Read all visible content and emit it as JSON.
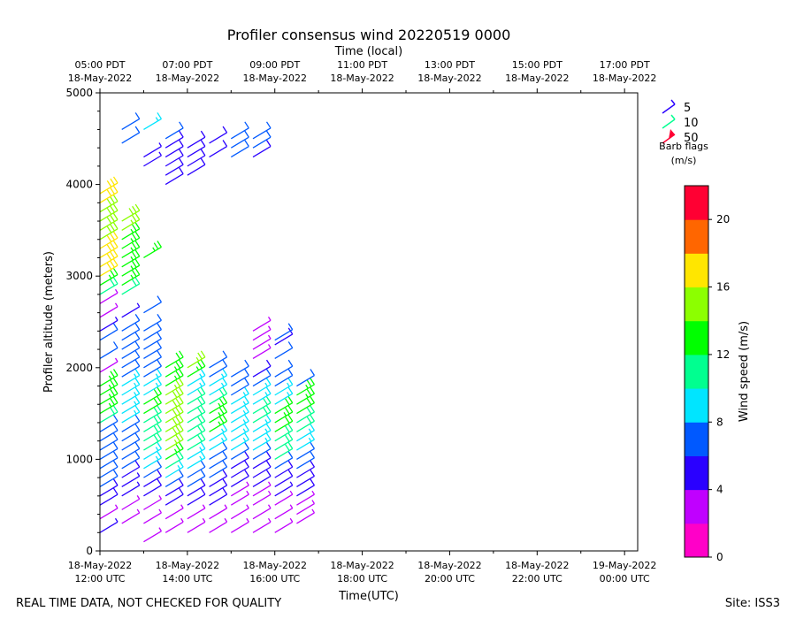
{
  "chart_data": {
    "type": "wind-barb profile",
    "title": "Profiler consensus wind 20220519 0000",
    "top_axis": {
      "label": "Time (local)",
      "ticks": [
        {
          "hour": 12,
          "line1": "05:00 PDT",
          "line2": "18-May-2022"
        },
        {
          "hour": 14,
          "line1": "07:00 PDT",
          "line2": "18-May-2022"
        },
        {
          "hour": 16,
          "line1": "09:00 PDT",
          "line2": "18-May-2022"
        },
        {
          "hour": 18,
          "line1": "11:00 PDT",
          "line2": "18-May-2022"
        },
        {
          "hour": 20,
          "line1": "13:00 PDT",
          "line2": "18-May-2022"
        },
        {
          "hour": 22,
          "line1": "15:00 PDT",
          "line2": "18-May-2022"
        },
        {
          "hour": 24,
          "line1": "17:00 PDT",
          "line2": "18-May-2022"
        }
      ]
    },
    "bottom_axis": {
      "label": "Time(UTC)",
      "ticks": [
        {
          "hour": 12,
          "line1": "18-May-2022",
          "line2": "12:00 UTC"
        },
        {
          "hour": 14,
          "line1": "18-May-2022",
          "line2": "14:00 UTC"
        },
        {
          "hour": 16,
          "line1": "18-May-2022",
          "line2": "16:00 UTC"
        },
        {
          "hour": 18,
          "line1": "18-May-2022",
          "line2": "18:00 UTC"
        },
        {
          "hour": 20,
          "line1": "18-May-2022",
          "line2": "20:00 UTC"
        },
        {
          "hour": 22,
          "line1": "18-May-2022",
          "line2": "22:00 UTC"
        },
        {
          "hour": 24,
          "line1": "19-May-2022",
          "line2": "00:00 UTC"
        }
      ],
      "xlim": [
        12,
        24.3
      ]
    },
    "y_axis": {
      "label": "Profiler altitude (meters)",
      "ticks": [
        "0",
        "1000",
        "2000",
        "3000",
        "4000",
        "5000"
      ],
      "ylim": [
        0,
        5000
      ]
    },
    "barb_legend": {
      "entries": [
        "5",
        "10",
        "50"
      ],
      "title_line1": "Barb flags",
      "title_line2": "(m/s)"
    },
    "colorbar": {
      "label": "Wind speed (m/s)",
      "tick_labels": [
        "0",
        "4",
        "8",
        "12",
        "16",
        "20"
      ],
      "range": [
        0,
        22
      ],
      "colors": [
        "#ff00c8",
        "#c000ff",
        "#2a00ff",
        "#0059ff",
        "#00e5ff",
        "#00ff90",
        "#00ff00",
        "#8cff00",
        "#ffe600",
        "#ff6600",
        "#ff0033"
      ]
    },
    "columns": [
      {
        "hour": 12.0,
        "levels": [
          [
            200,
            4
          ],
          [
            350,
            3
          ],
          [
            500,
            5
          ],
          [
            600,
            5
          ],
          [
            700,
            6
          ],
          [
            800,
            6
          ],
          [
            900,
            6
          ],
          [
            1000,
            6
          ],
          [
            1100,
            7
          ],
          [
            1200,
            7
          ],
          [
            1300,
            7
          ],
          [
            1400,
            11
          ],
          [
            1500,
            13
          ],
          [
            1600,
            13
          ],
          [
            1700,
            13
          ],
          [
            1800,
            13
          ],
          [
            1950,
            3
          ],
          [
            2100,
            7
          ],
          [
            2300,
            6
          ],
          [
            2400,
            4
          ],
          [
            2550,
            3
          ],
          [
            2700,
            3
          ],
          [
            2800,
            10
          ],
          [
            2900,
            13
          ],
          [
            3000,
            17
          ],
          [
            3100,
            17
          ],
          [
            3200,
            16
          ],
          [
            3300,
            16
          ],
          [
            3400,
            15
          ],
          [
            3500,
            15
          ],
          [
            3600,
            15
          ],
          [
            3700,
            15
          ],
          [
            3800,
            16
          ],
          [
            3900,
            17
          ]
        ]
      },
      {
        "hour": 12.5,
        "levels": [
          [
            300,
            3
          ],
          [
            450,
            3
          ],
          [
            600,
            4
          ],
          [
            700,
            4
          ],
          [
            800,
            5
          ],
          [
            900,
            6
          ],
          [
            1000,
            6
          ],
          [
            1100,
            6
          ],
          [
            1200,
            7
          ],
          [
            1300,
            7
          ],
          [
            1400,
            8
          ],
          [
            1500,
            9
          ],
          [
            1600,
            9
          ],
          [
            1700,
            9
          ],
          [
            1800,
            9
          ],
          [
            1900,
            7
          ],
          [
            2000,
            7
          ],
          [
            2100,
            7
          ],
          [
            2200,
            7
          ],
          [
            2300,
            7
          ],
          [
            2400,
            7
          ],
          [
            2550,
            4
          ],
          [
            2800,
            10
          ],
          [
            2900,
            13
          ],
          [
            3000,
            13
          ],
          [
            3100,
            13
          ],
          [
            3200,
            13
          ],
          [
            3300,
            13
          ],
          [
            3400,
            13
          ],
          [
            3500,
            14
          ],
          [
            3600,
            15
          ],
          [
            4450,
            7
          ],
          [
            4600,
            7
          ]
        ]
      },
      {
        "hour": 13.0,
        "levels": [
          [
            100,
            3
          ],
          [
            300,
            3
          ],
          [
            450,
            3
          ],
          [
            600,
            5
          ],
          [
            700,
            5
          ],
          [
            800,
            7
          ],
          [
            900,
            8
          ],
          [
            1000,
            9
          ],
          [
            1100,
            10
          ],
          [
            1200,
            10
          ],
          [
            1300,
            10
          ],
          [
            1400,
            11
          ],
          [
            1500,
            12
          ],
          [
            1600,
            12
          ],
          [
            1700,
            9
          ],
          [
            1800,
            8
          ],
          [
            1900,
            7
          ],
          [
            2000,
            7
          ],
          [
            2100,
            7
          ],
          [
            2200,
            7
          ],
          [
            2300,
            7
          ],
          [
            2400,
            6
          ],
          [
            2600,
            6
          ],
          [
            3200,
            13
          ],
          [
            4200,
            4
          ],
          [
            4300,
            4
          ],
          [
            4600,
            8
          ]
        ]
      },
      {
        "hour": 13.5,
        "levels": [
          [
            200,
            3
          ],
          [
            350,
            3
          ],
          [
            500,
            5
          ],
          [
            600,
            5
          ],
          [
            700,
            6
          ],
          [
            800,
            8
          ],
          [
            900,
            10
          ],
          [
            1000,
            13
          ],
          [
            1100,
            14
          ],
          [
            1200,
            15
          ],
          [
            1300,
            15
          ],
          [
            1400,
            15
          ],
          [
            1500,
            15
          ],
          [
            1600,
            15
          ],
          [
            1700,
            14
          ],
          [
            1800,
            13
          ],
          [
            1900,
            13
          ],
          [
            2000,
            12
          ],
          [
            4000,
            5
          ],
          [
            4100,
            5
          ],
          [
            4200,
            5
          ],
          [
            4300,
            5
          ],
          [
            4400,
            5
          ],
          [
            4500,
            6
          ]
        ]
      },
      {
        "hour": 14.0,
        "levels": [
          [
            200,
            3
          ],
          [
            350,
            3
          ],
          [
            500,
            5
          ],
          [
            600,
            5
          ],
          [
            700,
            6
          ],
          [
            800,
            7
          ],
          [
            900,
            8
          ],
          [
            1000,
            9
          ],
          [
            1100,
            10
          ],
          [
            1200,
            10
          ],
          [
            1300,
            11
          ],
          [
            1400,
            11
          ],
          [
            1500,
            10
          ],
          [
            1600,
            10
          ],
          [
            1700,
            9
          ],
          [
            1800,
            9
          ],
          [
            1900,
            13
          ],
          [
            2000,
            14
          ],
          [
            4100,
            5
          ],
          [
            4200,
            5
          ],
          [
            4300,
            5
          ],
          [
            4400,
            5
          ]
        ]
      },
      {
        "hour": 14.5,
        "levels": [
          [
            200,
            3
          ],
          [
            350,
            3
          ],
          [
            500,
            5
          ],
          [
            600,
            5
          ],
          [
            700,
            5
          ],
          [
            800,
            6
          ],
          [
            900,
            6
          ],
          [
            1000,
            7
          ],
          [
            1100,
            8
          ],
          [
            1200,
            9
          ],
          [
            1300,
            13
          ],
          [
            1400,
            13
          ],
          [
            1500,
            13
          ],
          [
            1600,
            10
          ],
          [
            1700,
            9
          ],
          [
            1800,
            9
          ],
          [
            1900,
            7
          ],
          [
            2000,
            7
          ],
          [
            4300,
            5
          ],
          [
            4450,
            5
          ]
        ]
      },
      {
        "hour": 15.0,
        "levels": [
          [
            200,
            3
          ],
          [
            350,
            3
          ],
          [
            500,
            3
          ],
          [
            600,
            3
          ],
          [
            700,
            5
          ],
          [
            800,
            5
          ],
          [
            900,
            5
          ],
          [
            1000,
            6
          ],
          [
            1100,
            9
          ],
          [
            1200,
            9
          ],
          [
            1300,
            9
          ],
          [
            1400,
            9
          ],
          [
            1500,
            9
          ],
          [
            1600,
            8
          ],
          [
            1700,
            7
          ],
          [
            1800,
            7
          ],
          [
            1900,
            7
          ],
          [
            4300,
            7
          ],
          [
            4400,
            7
          ],
          [
            4500,
            7
          ]
        ]
      },
      {
        "hour": 15.5,
        "levels": [
          [
            200,
            3
          ],
          [
            350,
            3
          ],
          [
            500,
            3
          ],
          [
            600,
            3
          ],
          [
            700,
            5
          ],
          [
            800,
            5
          ],
          [
            900,
            5
          ],
          [
            1000,
            6
          ],
          [
            1100,
            9
          ],
          [
            1200,
            9
          ],
          [
            1300,
            9
          ],
          [
            1400,
            10
          ],
          [
            1500,
            10
          ],
          [
            1600,
            9
          ],
          [
            1700,
            8
          ],
          [
            1800,
            7
          ],
          [
            1900,
            5
          ],
          [
            2100,
            3
          ],
          [
            2200,
            3
          ],
          [
            2300,
            3
          ],
          [
            2400,
            3
          ],
          [
            4300,
            5
          ],
          [
            4400,
            7
          ],
          [
            4500,
            7
          ]
        ]
      },
      {
        "hour": 16.0,
        "levels": [
          [
            200,
            3
          ],
          [
            350,
            3
          ],
          [
            500,
            3
          ],
          [
            600,
            4
          ],
          [
            700,
            5
          ],
          [
            800,
            5
          ],
          [
            900,
            6
          ],
          [
            1000,
            10
          ],
          [
            1100,
            11
          ],
          [
            1200,
            11
          ],
          [
            1300,
            12
          ],
          [
            1400,
            13
          ],
          [
            1500,
            12
          ],
          [
            1600,
            9
          ],
          [
            1700,
            8
          ],
          [
            1800,
            7
          ],
          [
            1900,
            7
          ],
          [
            2100,
            6
          ],
          [
            2250,
            5
          ],
          [
            2300,
            7
          ]
        ]
      },
      {
        "hour": 16.5,
        "levels": [
          [
            300,
            3
          ],
          [
            400,
            3
          ],
          [
            500,
            3
          ],
          [
            600,
            5
          ],
          [
            700,
            5
          ],
          [
            800,
            5
          ],
          [
            900,
            6
          ],
          [
            1000,
            6
          ],
          [
            1100,
            9
          ],
          [
            1200,
            9
          ],
          [
            1300,
            10
          ],
          [
            1400,
            11
          ],
          [
            1500,
            12
          ],
          [
            1600,
            13
          ],
          [
            1700,
            13
          ],
          [
            1800,
            7
          ]
        ]
      }
    ]
  },
  "footer": {
    "disclaimer": "REAL TIME DATA, NOT CHECKED FOR QUALITY",
    "site": "Site: ISS3"
  }
}
